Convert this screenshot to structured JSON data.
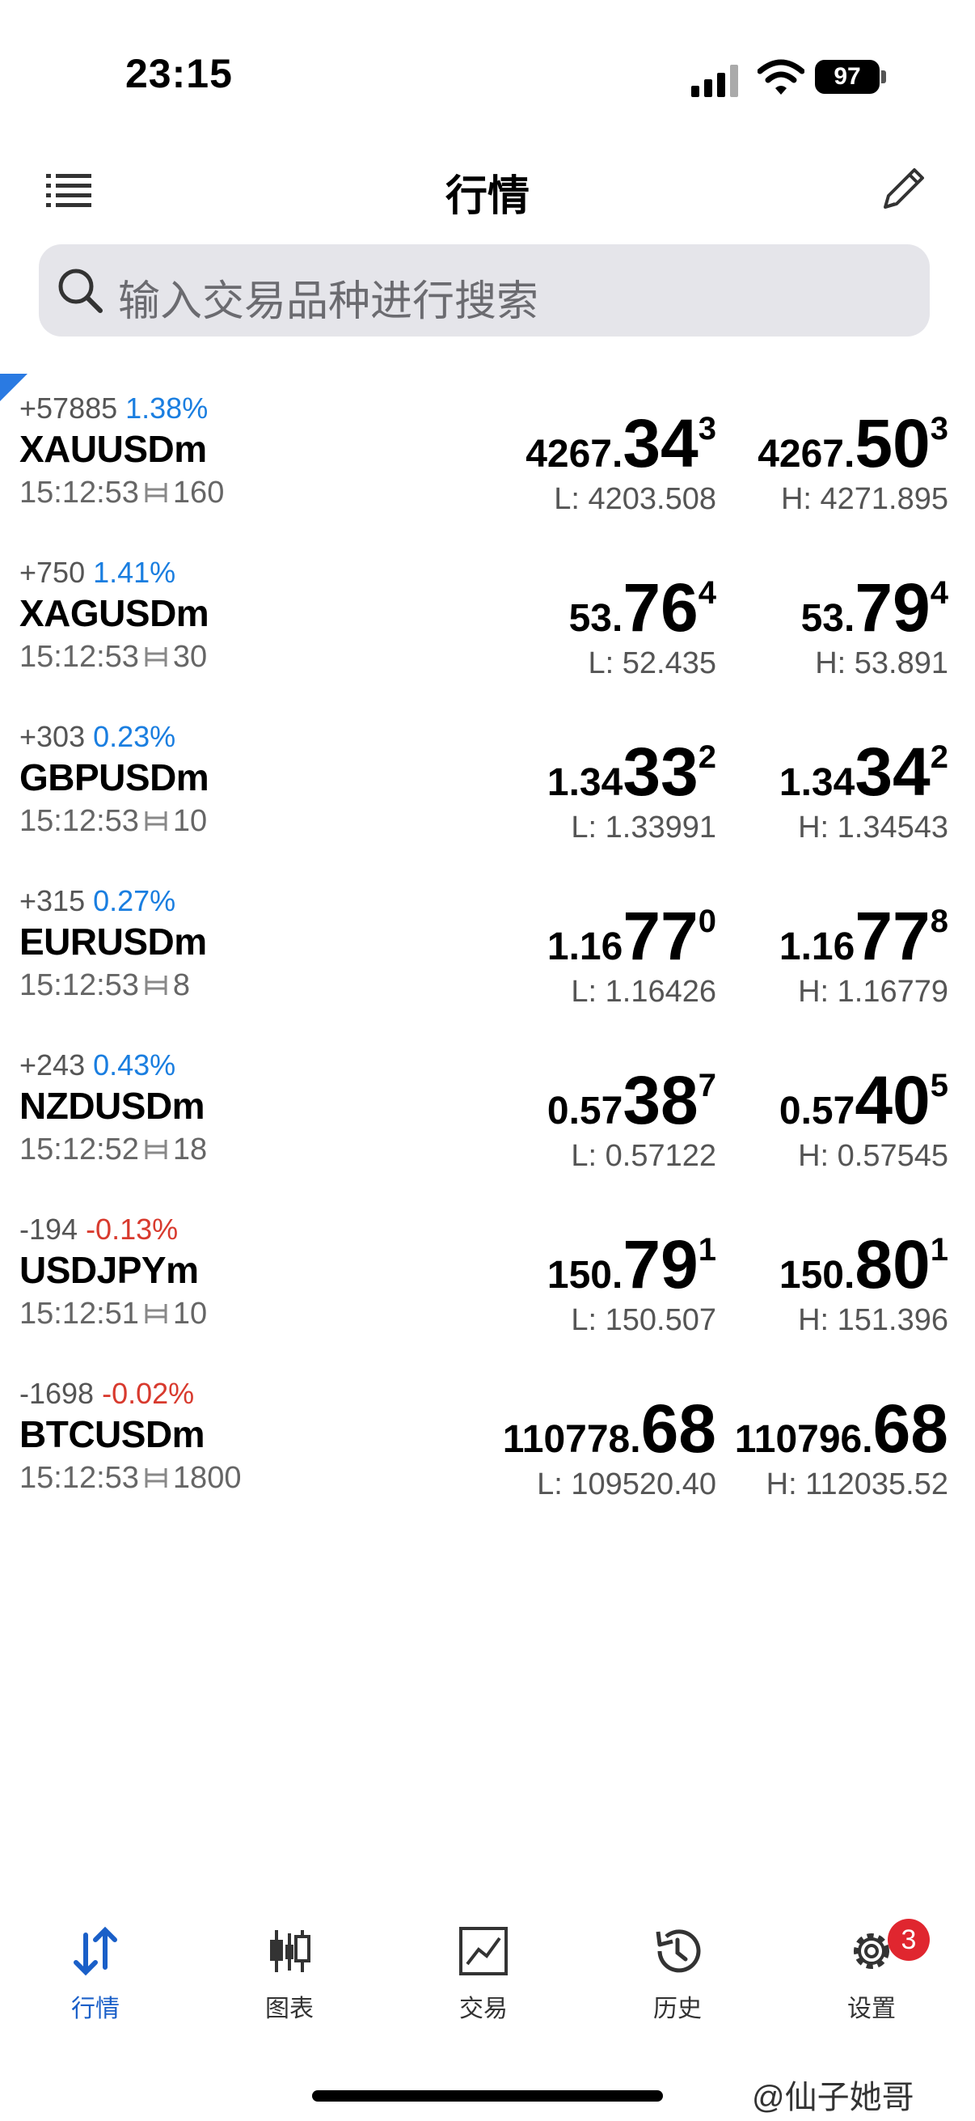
{
  "status_bar": {
    "time": "23:15",
    "battery": "97"
  },
  "header": {
    "title": "行情"
  },
  "search": {
    "placeholder": "输入交易品种进行搜索"
  },
  "colors": {
    "accent": "#1a5fc8",
    "up": "#1a7ee0",
    "down": "#d83a2e",
    "badge": "#e0262f"
  },
  "rows": [
    {
      "change": "+57885",
      "percent": "1.38%",
      "direction": "up",
      "symbol": "XAUUSDm",
      "time": "15:12:53",
      "spread": "160",
      "bid": {
        "small": "4267.",
        "big": "34",
        "sup": "3"
      },
      "ask": {
        "small": "4267.",
        "big": "50",
        "sup": "3"
      },
      "low": "L: 4203.508",
      "high": "H: 4271.895"
    },
    {
      "change": "+750",
      "percent": "1.41%",
      "direction": "up",
      "symbol": "XAGUSDm",
      "time": "15:12:53",
      "spread": "30",
      "bid": {
        "small": "53.",
        "big": "76",
        "sup": "4"
      },
      "ask": {
        "small": "53.",
        "big": "79",
        "sup": "4"
      },
      "low": "L: 52.435",
      "high": "H: 53.891"
    },
    {
      "change": "+303",
      "percent": "0.23%",
      "direction": "up",
      "symbol": "GBPUSDm",
      "time": "15:12:53",
      "spread": "10",
      "bid": {
        "small": "1.34",
        "big": "33",
        "sup": "2"
      },
      "ask": {
        "small": "1.34",
        "big": "34",
        "sup": "2"
      },
      "low": "L: 1.33991",
      "high": "H: 1.34543"
    },
    {
      "change": "+315",
      "percent": "0.27%",
      "direction": "up",
      "symbol": "EURUSDm",
      "time": "15:12:53",
      "spread": "8",
      "bid": {
        "small": "1.16",
        "big": "77",
        "sup": "0"
      },
      "ask": {
        "small": "1.16",
        "big": "77",
        "sup": "8"
      },
      "low": "L: 1.16426",
      "high": "H: 1.16779"
    },
    {
      "change": "+243",
      "percent": "0.43%",
      "direction": "up",
      "symbol": "NZDUSDm",
      "time": "15:12:52",
      "spread": "18",
      "bid": {
        "small": "0.57",
        "big": "38",
        "sup": "7"
      },
      "ask": {
        "small": "0.57",
        "big": "40",
        "sup": "5"
      },
      "low": "L: 0.57122",
      "high": "H: 0.57545"
    },
    {
      "change": "-194",
      "percent": "-0.13%",
      "direction": "down",
      "symbol": "USDJPYm",
      "time": "15:12:51",
      "spread": "10",
      "bid": {
        "small": "150.",
        "big": "79",
        "sup": "1"
      },
      "ask": {
        "small": "150.",
        "big": "80",
        "sup": "1"
      },
      "low": "L: 150.507",
      "high": "H: 151.396"
    },
    {
      "change": "-1698",
      "percent": "-0.02%",
      "direction": "down",
      "symbol": "BTCUSDm",
      "time": "15:12:53",
      "spread": "1800",
      "bid": {
        "small": "110778.",
        "big": "68",
        "sup": ""
      },
      "ask": {
        "small": "110796.",
        "big": "68",
        "sup": ""
      },
      "low": "L: 109520.40",
      "high": "H: 112035.52"
    }
  ],
  "tabs": [
    {
      "label": "行情",
      "icon": "quotes-icon",
      "active": true
    },
    {
      "label": "图表",
      "icon": "chart-candles-icon",
      "active": false
    },
    {
      "label": "交易",
      "icon": "trade-chart-icon",
      "active": false
    },
    {
      "label": "历史",
      "icon": "history-icon",
      "active": false
    },
    {
      "label": "设置",
      "icon": "gear-icon",
      "active": false
    }
  ],
  "settings_badge": "3",
  "watermark": "@仙子她哥"
}
